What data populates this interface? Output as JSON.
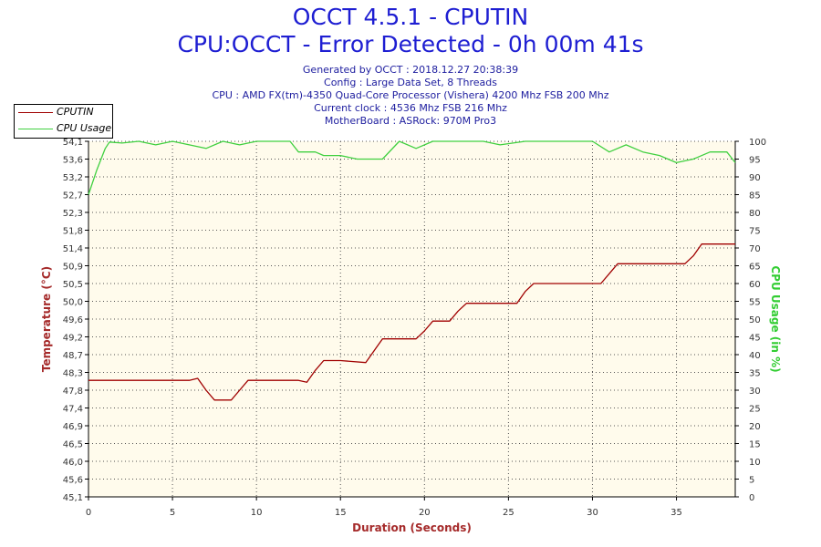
{
  "header": {
    "title": "OCCT 4.5.1 - CPUTIN",
    "subtitle": "CPU:OCCT - Error Detected - 0h 00m 41s",
    "info_lines": [
      "Generated by OCCT : 2018.12.27 20:38:39",
      "Config : Large Data Set, 8 Threads",
      "CPU : AMD FX(tm)-4350 Quad-Core Processor (Vishera) 4200 Mhz FSB 200 Mhz",
      "Current clock : 4536 Mhz FSB 216 Mhz",
      "MotherBoard : ASRock: 970M Pro3"
    ]
  },
  "legend": {
    "items": [
      {
        "label": "CPUTIN",
        "color": "#a00000"
      },
      {
        "label": "CPU Usage",
        "color": "#40d040"
      }
    ]
  },
  "colors": {
    "plot_bg": "#fffbec",
    "grid": "#555555",
    "temp_axis": "#a52a2a",
    "usage_axis": "#32cd32",
    "title": "#1e1ed2"
  },
  "chart_data": {
    "type": "line",
    "xlabel": "Duration (Seconds)",
    "ylabel": "Temperature (°C)",
    "y2label": "CPU Usage (in %)",
    "xlim": [
      0,
      38.5
    ],
    "ylim": [
      45.1,
      54.1
    ],
    "y2lim": [
      0,
      100
    ],
    "x_ticks": [
      "0",
      "5",
      "10",
      "15",
      "20",
      "25",
      "30",
      "35"
    ],
    "x_tick_values": [
      0,
      5,
      10,
      15,
      20,
      25,
      30,
      35
    ],
    "y_ticks": [
      "45,1",
      "45,6",
      "46,0",
      "46,5",
      "46,9",
      "47,4",
      "47,8",
      "48,3",
      "48,7",
      "49,2",
      "49,6",
      "50,0",
      "50,5",
      "50,9",
      "51,4",
      "51,8",
      "52,3",
      "52,7",
      "53,2",
      "53,6",
      "54,1"
    ],
    "y_tick_values": [
      45.1,
      45.55,
      46.0,
      46.45,
      46.9,
      47.35,
      47.8,
      48.25,
      48.7,
      49.15,
      49.6,
      50.05,
      50.5,
      50.95,
      51.4,
      51.85,
      52.3,
      52.75,
      53.2,
      53.65,
      54.1
    ],
    "y2_ticks": [
      "0",
      "5",
      "10",
      "15",
      "20",
      "25",
      "30",
      "35",
      "40",
      "45",
      "50",
      "55",
      "60",
      "65",
      "70",
      "75",
      "80",
      "85",
      "90",
      "95",
      "100"
    ],
    "y2_tick_values": [
      0,
      5,
      10,
      15,
      20,
      25,
      30,
      35,
      40,
      45,
      50,
      55,
      60,
      65,
      70,
      75,
      80,
      85,
      90,
      95,
      100
    ],
    "grid": true,
    "legend_position": "top-left",
    "series": [
      {
        "name": "CPUTIN",
        "axis": "left",
        "color": "#a00000",
        "x": [
          0,
          6,
          6.5,
          7,
          7.5,
          8.5,
          9,
          9.5,
          10,
          12.5,
          13,
          13.5,
          14,
          15,
          16.5,
          17,
          17.5,
          18,
          19.5,
          20,
          20.5,
          21.5,
          22,
          22.5,
          23,
          25,
          25.5,
          26,
          26.5,
          28,
          30.5,
          31,
          31.5,
          32,
          35,
          35.5,
          36,
          36.5,
          37.5,
          38.5
        ],
        "y": [
          48.05,
          48.05,
          48.1,
          47.8,
          47.55,
          47.55,
          47.8,
          48.05,
          48.05,
          48.05,
          48.0,
          48.3,
          48.55,
          48.55,
          48.5,
          48.8,
          49.1,
          49.1,
          49.1,
          49.3,
          49.55,
          49.55,
          49.8,
          50.0,
          50.0,
          50.0,
          50.0,
          50.3,
          50.5,
          50.5,
          50.5,
          50.75,
          51.0,
          51.0,
          51.0,
          51.0,
          51.2,
          51.5,
          51.5,
          51.5
        ]
      },
      {
        "name": "CPU Usage",
        "axis": "right",
        "color": "#40d040",
        "x": [
          0,
          0.5,
          1,
          1.25,
          2,
          3,
          4,
          5,
          6,
          7,
          8,
          9,
          10,
          12,
          12.5,
          13.5,
          14,
          15,
          16,
          17.5,
          18.5,
          19.5,
          20.5,
          23.5,
          24.5,
          26,
          28,
          30,
          31,
          32,
          33,
          34,
          35,
          36,
          37,
          38,
          38.5
        ],
        "y": [
          85,
          92,
          98,
          99.8,
          99.5,
          100,
          99,
          100,
          99,
          98,
          100,
          99,
          100,
          100,
          97,
          97,
          96,
          96,
          95,
          95,
          100,
          98,
          100,
          100,
          99,
          100,
          100,
          100,
          97,
          99,
          97,
          96,
          94,
          95,
          97,
          97,
          94
        ]
      }
    ]
  }
}
